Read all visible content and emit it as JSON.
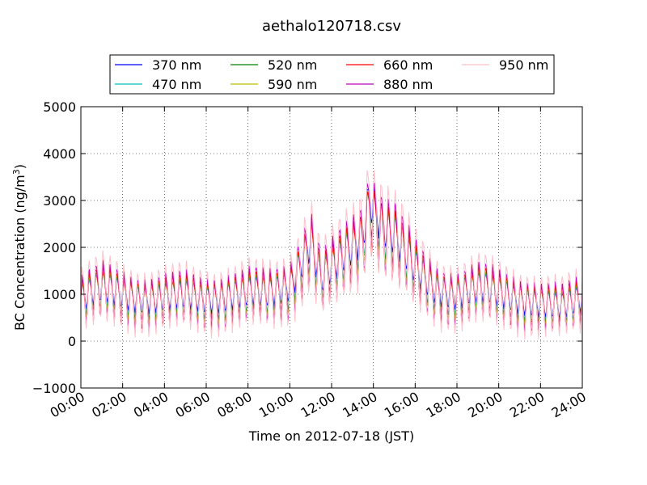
{
  "chart_data": {
    "type": "line",
    "title": "aethalo120718.csv",
    "xlabel": "Time on 2012-07-18 (JST)",
    "ylabel_main": "BC Concentration (ng/m",
    "ylabel_sup": "3",
    "ylabel_close": ")",
    "ylim": [
      -1000,
      5000
    ],
    "xlim_hours": [
      0,
      24
    ],
    "grid": true,
    "legend_position": "top",
    "yticks": [
      -1000,
      0,
      1000,
      2000,
      3000,
      4000,
      5000
    ],
    "ytick_labels": [
      "−1000",
      "0",
      "1000",
      "2000",
      "3000",
      "4000",
      "5000"
    ],
    "xticks_hours": [
      0,
      2,
      4,
      6,
      8,
      10,
      12,
      14,
      16,
      18,
      20,
      22,
      24
    ],
    "xtick_labels": [
      "00:00",
      "02:00",
      "04:00",
      "06:00",
      "08:00",
      "10:00",
      "12:00",
      "14:00",
      "16:00",
      "18:00",
      "20:00",
      "22:00",
      "24:00"
    ],
    "x_unit": "hours since 00:00",
    "baseline_hours": [
      0,
      1,
      2,
      3,
      4,
      5,
      6,
      7,
      8,
      9,
      10,
      11,
      11.5,
      12,
      13,
      13.5,
      13.8,
      14.5,
      15,
      16,
      17,
      18,
      19,
      20,
      21,
      22,
      23,
      24
    ],
    "baseline_values": [
      900,
      1100,
      1000,
      900,
      900,
      950,
      900,
      950,
      1000,
      1000,
      1200,
      2100,
      1300,
      1500,
      2000,
      2300,
      3000,
      2400,
      2200,
      1500,
      1100,
      1000,
      1100,
      1000,
      900,
      800,
      700,
      900
    ],
    "series": [
      {
        "name": "370 nm",
        "color": "#0000ff",
        "amp": 0.45,
        "offset": 0.05
      },
      {
        "name": "470 nm",
        "color": "#00bfbf",
        "amp": 0.55,
        "offset": 0.0
      },
      {
        "name": "520 nm",
        "color": "#008000",
        "amp": 0.6,
        "offset": 0.0
      },
      {
        "name": "590 nm",
        "color": "#bfbf00",
        "amp": 0.65,
        "offset": -0.02
      },
      {
        "name": "660 nm",
        "color": "#ff0000",
        "amp": 0.8,
        "offset": -0.05
      },
      {
        "name": "880 nm",
        "color": "#bf00bf",
        "amp": 0.85,
        "offset": 0.0
      },
      {
        "name": "950 nm",
        "color": "#ffc0cb",
        "amp": 1.05,
        "offset": 0.05
      }
    ],
    "oscillation_period_hours": 0.333,
    "oscillation_amplitude": 800
  }
}
